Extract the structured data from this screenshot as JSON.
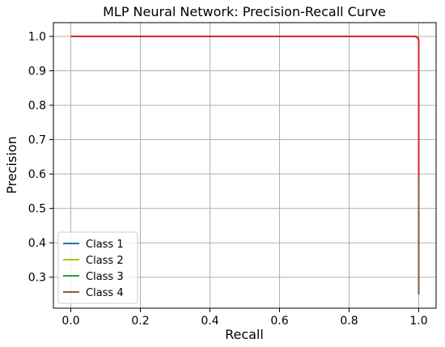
{
  "chart_data": {
    "type": "line",
    "title": "MLP Neural Network: Precision-Recall Curve",
    "xlabel": "Recall",
    "ylabel": "Precision",
    "xlim": [
      -0.05,
      1.05
    ],
    "ylim": [
      0.21,
      1.04
    ],
    "xticks": [
      0.0,
      0.2,
      0.4,
      0.6,
      0.8,
      1.0
    ],
    "xtick_labels": [
      "0.0",
      "0.2",
      "0.4",
      "0.6",
      "0.8",
      "1.0"
    ],
    "yticks": [
      0.3,
      0.4,
      0.5,
      0.6,
      0.7,
      0.8,
      0.9,
      1.0
    ],
    "ytick_labels": [
      "0.3",
      "0.4",
      "0.5",
      "0.6",
      "0.7",
      "0.8",
      "0.9",
      "1.0"
    ],
    "grid": true,
    "legend": "lower-left",
    "series": [
      {
        "name": "Class 1",
        "color": "#1f77b4",
        "x": [
          0.0,
          0.99,
          0.995,
          0.998,
          1.0,
          1.0
        ],
        "y": [
          1.0,
          1.0,
          0.998,
          0.995,
          0.99,
          0.25
        ]
      },
      {
        "name": "Class 2",
        "color": "#bcbd22",
        "x": [
          0.0,
          0.99,
          0.995,
          0.998,
          1.0,
          1.0
        ],
        "y": [
          1.0,
          1.0,
          0.998,
          0.995,
          0.99,
          0.25
        ]
      },
      {
        "name": "Class 3",
        "color": "#2ca02c",
        "x": [
          0.0,
          0.99,
          0.995,
          0.998,
          1.0,
          1.0
        ],
        "y": [
          1.0,
          1.0,
          0.998,
          0.995,
          0.99,
          0.25
        ]
      },
      {
        "name": "Class 4",
        "color": "#8c564b",
        "x": [
          0.0,
          0.99,
          0.995,
          0.998,
          1.0,
          1.0
        ],
        "y": [
          1.0,
          1.0,
          0.998,
          0.995,
          0.99,
          0.25
        ]
      },
      {
        "color": "#d62728",
        "x": [
          0.0,
          0.99,
          0.995,
          0.998,
          1.0,
          1.0
        ],
        "y": [
          1.0,
          1.0,
          0.998,
          0.995,
          0.99,
          0.59
        ]
      }
    ]
  }
}
